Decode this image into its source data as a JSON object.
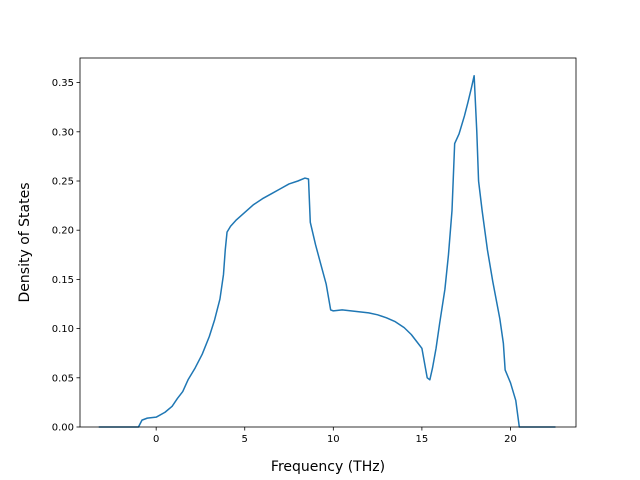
{
  "chart_data": {
    "type": "line",
    "title": "",
    "xlabel": "Frequency (THz)",
    "ylabel": "Density of States",
    "xlim": [
      -4.3,
      23.7
    ],
    "ylim": [
      0.0,
      0.375
    ],
    "xticks": [
      0,
      5,
      10,
      15,
      20
    ],
    "xtick_labels": [
      "0",
      "5",
      "10",
      "15",
      "20"
    ],
    "yticks": [
      0.0,
      0.05,
      0.1,
      0.15,
      0.2,
      0.25,
      0.3,
      0.35
    ],
    "ytick_labels": [
      "0.00",
      "0.05",
      "0.10",
      "0.15",
      "0.20",
      "0.25",
      "0.30",
      "0.35"
    ],
    "grid": false,
    "legend": "none",
    "series": [
      {
        "color": "#1f77b4",
        "points": [
          [
            -3.2,
            0.0
          ],
          [
            -1.0,
            0.0
          ],
          [
            -0.8,
            0.007
          ],
          [
            -0.5,
            0.009
          ],
          [
            0.0,
            0.01
          ],
          [
            0.5,
            0.015
          ],
          [
            0.9,
            0.021
          ],
          [
            1.2,
            0.029
          ],
          [
            1.5,
            0.036
          ],
          [
            1.8,
            0.048
          ],
          [
            2.2,
            0.06
          ],
          [
            2.6,
            0.074
          ],
          [
            3.0,
            0.092
          ],
          [
            3.3,
            0.109
          ],
          [
            3.6,
            0.13
          ],
          [
            3.8,
            0.155
          ],
          [
            3.9,
            0.18
          ],
          [
            4.0,
            0.198
          ],
          [
            4.2,
            0.204
          ],
          [
            4.5,
            0.21
          ],
          [
            5.0,
            0.218
          ],
          [
            5.5,
            0.226
          ],
          [
            6.0,
            0.232
          ],
          [
            6.5,
            0.237
          ],
          [
            7.0,
            0.242
          ],
          [
            7.5,
            0.247
          ],
          [
            8.0,
            0.25
          ],
          [
            8.4,
            0.253
          ],
          [
            8.6,
            0.252
          ],
          [
            8.7,
            0.208
          ],
          [
            9.0,
            0.185
          ],
          [
            9.3,
            0.165
          ],
          [
            9.6,
            0.145
          ],
          [
            9.85,
            0.119
          ],
          [
            10.0,
            0.118
          ],
          [
            10.5,
            0.119
          ],
          [
            11.0,
            0.118
          ],
          [
            11.5,
            0.117
          ],
          [
            12.0,
            0.116
          ],
          [
            12.5,
            0.114
          ],
          [
            13.0,
            0.111
          ],
          [
            13.5,
            0.107
          ],
          [
            14.0,
            0.101
          ],
          [
            14.4,
            0.094
          ],
          [
            14.7,
            0.087
          ],
          [
            15.0,
            0.08
          ],
          [
            15.2,
            0.06
          ],
          [
            15.3,
            0.05
          ],
          [
            15.45,
            0.048
          ],
          [
            15.6,
            0.06
          ],
          [
            15.8,
            0.08
          ],
          [
            16.0,
            0.105
          ],
          [
            16.3,
            0.14
          ],
          [
            16.5,
            0.175
          ],
          [
            16.7,
            0.22
          ],
          [
            16.85,
            0.288
          ],
          [
            17.1,
            0.298
          ],
          [
            17.4,
            0.316
          ],
          [
            17.6,
            0.33
          ],
          [
            17.8,
            0.345
          ],
          [
            17.95,
            0.357
          ],
          [
            18.1,
            0.3
          ],
          [
            18.2,
            0.25
          ],
          [
            18.4,
            0.22
          ],
          [
            18.7,
            0.18
          ],
          [
            19.0,
            0.148
          ],
          [
            19.4,
            0.11
          ],
          [
            19.6,
            0.085
          ],
          [
            19.7,
            0.058
          ],
          [
            20.0,
            0.045
          ],
          [
            20.3,
            0.027
          ],
          [
            20.5,
            0.0
          ],
          [
            22.5,
            0.0
          ]
        ]
      }
    ]
  }
}
